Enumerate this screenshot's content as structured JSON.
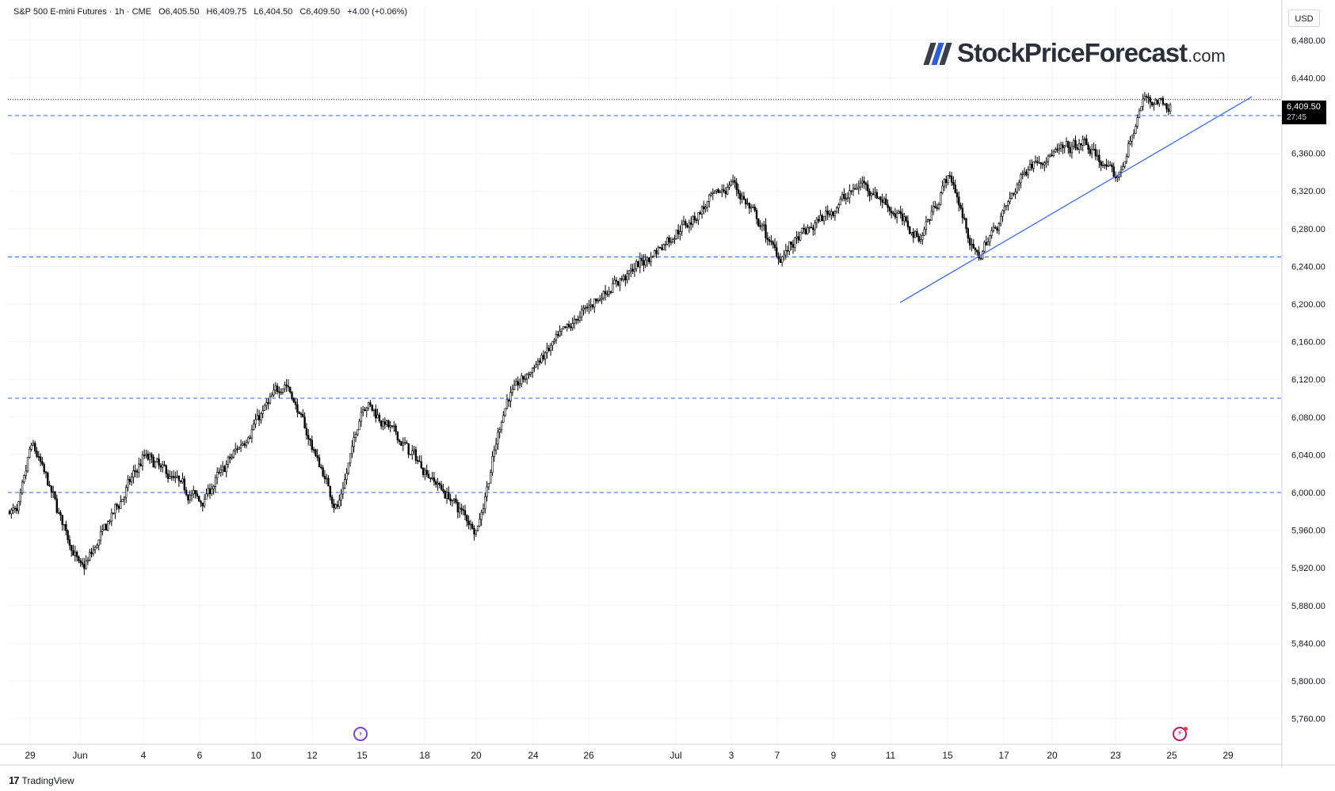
{
  "header": {
    "symbol": "S&P 500 E-mini Futures · 1h · CME",
    "open": "O6,405.50",
    "high": "H6,409.75",
    "low": "L6,404.50",
    "close": "C6,409.50",
    "change": "+4.00 (+0.06%)"
  },
  "logo": {
    "brand": "StockPriceForecast",
    "tld": ".com",
    "colors": [
      "#3a3f4b",
      "#2b5fd9",
      "#3a3f4b"
    ]
  },
  "price_axis": {
    "currency": "USD",
    "last_price": "6,409.50",
    "countdown": "27:45"
  },
  "footer": {
    "brand": "TradingView"
  },
  "events": {
    "left_icon": "split-event-icon",
    "right_icon": "earnings-flash-icon"
  },
  "chart_data": {
    "type": "candlestick",
    "interval": "1h",
    "ylim": [
      5740,
      6500
    ],
    "y_ticks": [
      5760,
      5800,
      5840,
      5880,
      5920,
      5960,
      6000,
      6040,
      6080,
      6120,
      6160,
      6200,
      6240,
      6280,
      6320,
      6360,
      6400,
      6440,
      6480
    ],
    "x_labels": [
      "29",
      "Jun",
      "4",
      "6",
      "10",
      "12",
      "15",
      "18",
      "20",
      "24",
      "26",
      "Jul",
      "3",
      "7",
      "9",
      "11",
      "15",
      "17",
      "20",
      "23",
      "25",
      "29"
    ],
    "last_price": 6409.5,
    "horizontal_levels": [
      6000,
      6100,
      6250,
      6400
    ],
    "trendline": {
      "from": {
        "x": "Jul 15",
        "y": 6220
      },
      "to": {
        "x": "Jul 28",
        "y": 6420
      }
    },
    "key_points": [
      {
        "x": "May 28",
        "y": 5980
      },
      {
        "x": "May 29",
        "y": 6055
      },
      {
        "x": "Jun 2",
        "y": 5915
      },
      {
        "x": "Jun 4",
        "y": 6040
      },
      {
        "x": "Jun 6",
        "y": 5990
      },
      {
        "x": "Jun 11",
        "y": 6120
      },
      {
        "x": "Jun 13",
        "y": 5980
      },
      {
        "x": "Jun 16",
        "y": 6100
      },
      {
        "x": "Jun 20",
        "y": 5960
      },
      {
        "x": "Jun 23",
        "y": 6100
      },
      {
        "x": "Jun 26",
        "y": 6200
      },
      {
        "x": "Jun 30",
        "y": 6250
      },
      {
        "x": "Jul 3",
        "y": 6330
      },
      {
        "x": "Jul 7",
        "y": 6250
      },
      {
        "x": "Jul 10",
        "y": 6330
      },
      {
        "x": "Jul 14",
        "y": 6270
      },
      {
        "x": "Jul 15",
        "y": 6340
      },
      {
        "x": "Jul 16",
        "y": 6245
      },
      {
        "x": "Jul 18",
        "y": 6350
      },
      {
        "x": "Jul 22",
        "y": 6370
      },
      {
        "x": "Jul 23",
        "y": 6330
      },
      {
        "x": "Jul 24",
        "y": 6420
      },
      {
        "x": "Jul 25",
        "y": 6409.5
      }
    ]
  }
}
